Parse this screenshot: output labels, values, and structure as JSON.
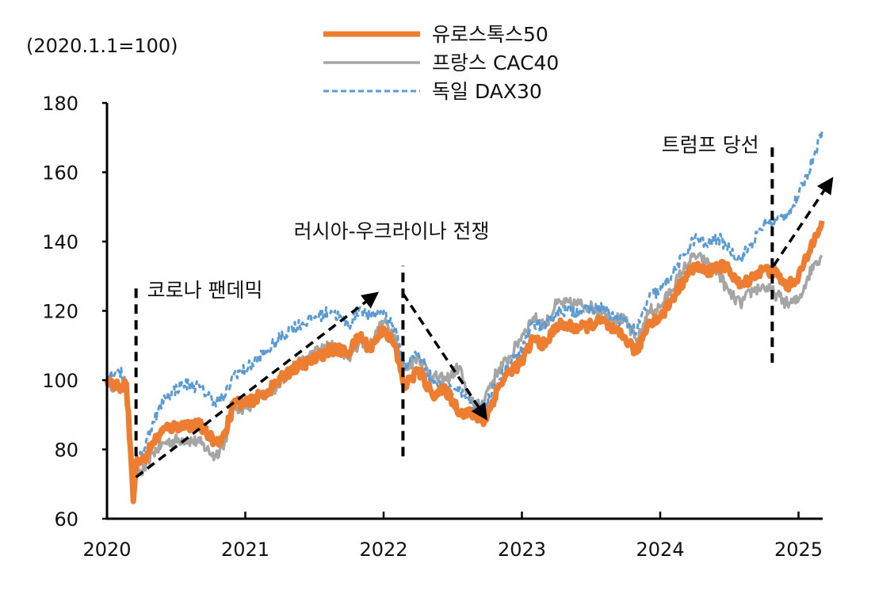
{
  "chart_data": {
    "type": "line",
    "title": "",
    "unit_label": "(2020.1.1=100)",
    "xlabel": "",
    "ylabel": "",
    "ylim": [
      60,
      180
    ],
    "y_ticks": [
      60,
      80,
      100,
      120,
      140,
      160,
      180
    ],
    "xlim": [
      2020.0,
      2025.2
    ],
    "x_ticks": [
      "2020",
      "2021",
      "2022",
      "2023",
      "2024",
      "2025"
    ],
    "grid": false,
    "legend_position": "top-center",
    "series": [
      {
        "name": "유로스톡스50",
        "color": "#ED7D31",
        "style": "solid-thick",
        "points": [
          [
            2020.0,
            100
          ],
          [
            2020.08,
            98
          ],
          [
            2020.14,
            99
          ],
          [
            2020.17,
            80
          ],
          [
            2020.19,
            65
          ],
          [
            2020.21,
            76
          ],
          [
            2020.27,
            77
          ],
          [
            2020.33,
            82
          ],
          [
            2020.42,
            86
          ],
          [
            2020.55,
            87
          ],
          [
            2020.67,
            87
          ],
          [
            2020.78,
            82
          ],
          [
            2020.85,
            84
          ],
          [
            2020.92,
            94
          ],
          [
            2021.0,
            93
          ],
          [
            2021.17,
            97
          ],
          [
            2021.33,
            103
          ],
          [
            2021.5,
            106
          ],
          [
            2021.62,
            109
          ],
          [
            2021.75,
            108
          ],
          [
            2021.83,
            113
          ],
          [
            2021.9,
            109
          ],
          [
            2022.0,
            115
          ],
          [
            2022.08,
            110
          ],
          [
            2022.15,
            98
          ],
          [
            2022.25,
            103
          ],
          [
            2022.35,
            96
          ],
          [
            2022.45,
            97
          ],
          [
            2022.55,
            91
          ],
          [
            2022.65,
            90
          ],
          [
            2022.73,
            88
          ],
          [
            2022.83,
            98
          ],
          [
            2022.92,
            103
          ],
          [
            2023.0,
            105
          ],
          [
            2023.08,
            112
          ],
          [
            2023.17,
            110
          ],
          [
            2023.25,
            116
          ],
          [
            2023.42,
            115
          ],
          [
            2023.58,
            117
          ],
          [
            2023.67,
            114
          ],
          [
            2023.75,
            112
          ],
          [
            2023.83,
            108
          ],
          [
            2023.92,
            117
          ],
          [
            2024.0,
            118
          ],
          [
            2024.08,
            123
          ],
          [
            2024.17,
            129
          ],
          [
            2024.25,
            133
          ],
          [
            2024.33,
            131
          ],
          [
            2024.42,
            133
          ],
          [
            2024.5,
            132
          ],
          [
            2024.58,
            127
          ],
          [
            2024.67,
            130
          ],
          [
            2024.75,
            132
          ],
          [
            2024.83,
            131
          ],
          [
            2024.92,
            127
          ],
          [
            2025.0,
            130
          ],
          [
            2025.07,
            136
          ],
          [
            2025.12,
            142
          ],
          [
            2025.17,
            146
          ]
        ]
      },
      {
        "name": "프랑스 CAC40",
        "color": "#A5A5A5",
        "style": "solid",
        "points": [
          [
            2020.0,
            100
          ],
          [
            2020.08,
            97
          ],
          [
            2020.14,
            99
          ],
          [
            2020.17,
            80
          ],
          [
            2020.19,
            65
          ],
          [
            2020.21,
            73
          ],
          [
            2020.27,
            74
          ],
          [
            2020.33,
            79
          ],
          [
            2020.42,
            82
          ],
          [
            2020.55,
            83
          ],
          [
            2020.67,
            82
          ],
          [
            2020.78,
            78
          ],
          [
            2020.85,
            82
          ],
          [
            2020.92,
            92
          ],
          [
            2021.0,
            92
          ],
          [
            2021.17,
            96
          ],
          [
            2021.33,
            103
          ],
          [
            2021.5,
            108
          ],
          [
            2021.62,
            110
          ],
          [
            2021.75,
            107
          ],
          [
            2021.83,
            111
          ],
          [
            2021.9,
            110
          ],
          [
            2022.0,
            117
          ],
          [
            2022.08,
            113
          ],
          [
            2022.15,
            103
          ],
          [
            2022.25,
            107
          ],
          [
            2022.35,
            101
          ],
          [
            2022.45,
            100
          ],
          [
            2022.55,
            104
          ],
          [
            2022.6,
            96
          ],
          [
            2022.7,
            92
          ],
          [
            2022.75,
            97
          ],
          [
            2022.83,
            103
          ],
          [
            2022.92,
            107
          ],
          [
            2023.0,
            113
          ],
          [
            2023.08,
            118
          ],
          [
            2023.17,
            116
          ],
          [
            2023.25,
            122
          ],
          [
            2023.42,
            122
          ],
          [
            2023.58,
            120
          ],
          [
            2023.67,
            118
          ],
          [
            2023.75,
            117
          ],
          [
            2023.83,
            111
          ],
          [
            2023.92,
            120
          ],
          [
            2024.0,
            121
          ],
          [
            2024.08,
            126
          ],
          [
            2024.17,
            132
          ],
          [
            2024.25,
            136
          ],
          [
            2024.33,
            134
          ],
          [
            2024.42,
            131
          ],
          [
            2024.5,
            125
          ],
          [
            2024.58,
            122
          ],
          [
            2024.67,
            126
          ],
          [
            2024.75,
            127
          ],
          [
            2024.83,
            125
          ],
          [
            2024.92,
            122
          ],
          [
            2025.0,
            123
          ],
          [
            2025.07,
            130
          ],
          [
            2025.12,
            134
          ],
          [
            2025.17,
            136
          ]
        ]
      },
      {
        "name": "독일 DAX30",
        "color": "#5B9BD5",
        "style": "dashed",
        "points": [
          [
            2020.0,
            101
          ],
          [
            2020.08,
            103
          ],
          [
            2020.14,
            100
          ],
          [
            2020.17,
            85
          ],
          [
            2020.19,
            66
          ],
          [
            2020.21,
            77
          ],
          [
            2020.27,
            80
          ],
          [
            2020.33,
            88
          ],
          [
            2020.42,
            95
          ],
          [
            2020.55,
            99
          ],
          [
            2020.67,
            98
          ],
          [
            2020.78,
            94
          ],
          [
            2020.85,
            95
          ],
          [
            2020.92,
            102
          ],
          [
            2021.0,
            103
          ],
          [
            2021.17,
            109
          ],
          [
            2021.33,
            115
          ],
          [
            2021.5,
            118
          ],
          [
            2021.62,
            120
          ],
          [
            2021.75,
            116
          ],
          [
            2021.83,
            121
          ],
          [
            2021.9,
            118
          ],
          [
            2022.0,
            120
          ],
          [
            2022.08,
            115
          ],
          [
            2022.15,
            104
          ],
          [
            2022.25,
            108
          ],
          [
            2022.35,
            100
          ],
          [
            2022.45,
            97
          ],
          [
            2022.55,
            98
          ],
          [
            2022.65,
            91
          ],
          [
            2022.73,
            92
          ],
          [
            2022.83,
            100
          ],
          [
            2022.92,
            105
          ],
          [
            2023.0,
            108
          ],
          [
            2023.08,
            117
          ],
          [
            2023.17,
            115
          ],
          [
            2023.25,
            120
          ],
          [
            2023.42,
            120
          ],
          [
            2023.58,
            121
          ],
          [
            2023.67,
            118
          ],
          [
            2023.75,
            117
          ],
          [
            2023.83,
            114
          ],
          [
            2023.92,
            124
          ],
          [
            2024.0,
            126
          ],
          [
            2024.08,
            130
          ],
          [
            2024.17,
            136
          ],
          [
            2024.25,
            141
          ],
          [
            2024.33,
            139
          ],
          [
            2024.42,
            141
          ],
          [
            2024.5,
            138
          ],
          [
            2024.58,
            135
          ],
          [
            2024.67,
            140
          ],
          [
            2024.75,
            145
          ],
          [
            2024.83,
            146
          ],
          [
            2024.92,
            148
          ],
          [
            2025.0,
            153
          ],
          [
            2025.07,
            160
          ],
          [
            2025.12,
            166
          ],
          [
            2025.17,
            172
          ]
        ]
      }
    ],
    "annotations": [
      {
        "label": "코로나 팬데믹",
        "line_x": 2020.21,
        "line_y": [
          78,
          127
        ],
        "text_x": 2020.29,
        "text_y": 124
      },
      {
        "label": "러시아-우크라이나 전쟁",
        "line_x": 2022.14,
        "line_y": [
          78,
          133
        ],
        "text_x": 2021.35,
        "text_y": 141
      },
      {
        "label": "트럼프 당선",
        "line_x": 2024.81,
        "line_y": [
          105,
          169
        ],
        "text_x": 2024.01,
        "text_y": 166
      }
    ],
    "trend_arrows": [
      {
        "from": [
          2020.21,
          72
        ],
        "to": [
          2021.95,
          125
        ]
      },
      {
        "from": [
          2022.14,
          125
        ],
        "to": [
          2022.74,
          89
        ]
      },
      {
        "from": [
          2024.82,
          133
        ],
        "to": [
          2025.24,
          158
        ]
      }
    ]
  }
}
